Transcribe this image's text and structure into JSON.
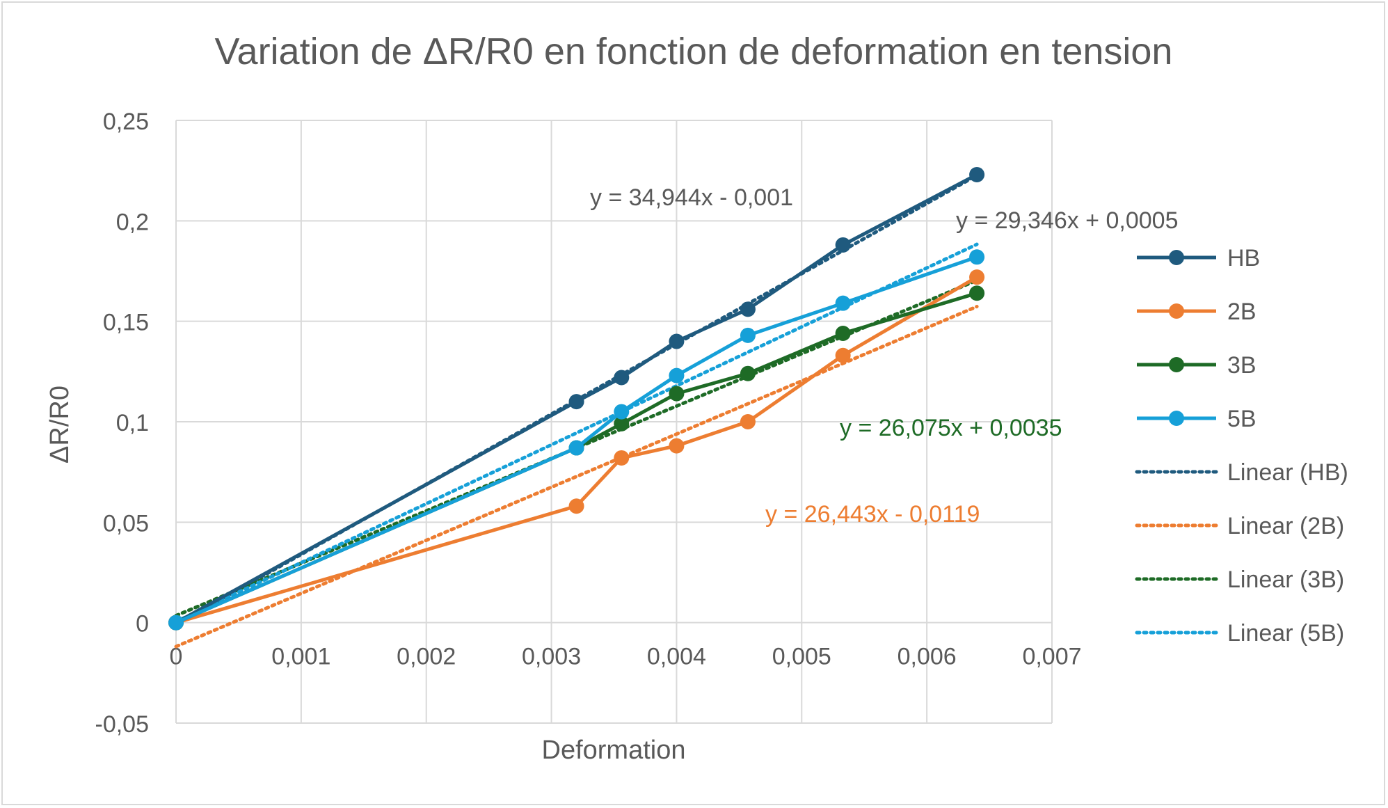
{
  "chart_data": {
    "type": "line",
    "title": "Variation de ΔR/R0 en fonction de deformation en tension",
    "xlabel": "Deformation",
    "ylabel": "ΔR/R0",
    "xlim": [
      0,
      0.007
    ],
    "ylim": [
      -0.05,
      0.25
    ],
    "x_ticks": [
      0,
      0.001,
      0.002,
      0.003,
      0.004,
      0.005,
      0.006,
      0.007
    ],
    "x_tick_labels": [
      "0",
      "0,001",
      "0,002",
      "0,003",
      "0,004",
      "0,005",
      "0,006",
      "0,007"
    ],
    "y_ticks": [
      -0.05,
      0,
      0.05,
      0.1,
      0.15,
      0.2,
      0.25
    ],
    "y_tick_labels": [
      "-0,05",
      "0",
      "0,05",
      "0,1",
      "0,15",
      "0,2",
      "0,25"
    ],
    "grid": true,
    "legend_position": "right",
    "series": [
      {
        "name": "HB",
        "color": "#1f5a7e",
        "x": [
          0,
          0.0032,
          0.00356,
          0.004,
          0.00457,
          0.00533,
          0.0064
        ],
        "y": [
          0,
          0.11,
          0.122,
          0.14,
          0.156,
          0.188,
          0.223
        ]
      },
      {
        "name": "2B",
        "color": "#ed7d31",
        "x": [
          0,
          0.0032,
          0.00356,
          0.004,
          0.00457,
          0.00533,
          0.0064
        ],
        "y": [
          0,
          0.058,
          0.082,
          0.088,
          0.1,
          0.133,
          0.172
        ]
      },
      {
        "name": "3B",
        "color": "#1e6b26",
        "x": [
          0,
          0.0032,
          0.00356,
          0.004,
          0.00457,
          0.00533,
          0.0064
        ],
        "y": [
          0,
          0.087,
          0.099,
          0.114,
          0.124,
          0.144,
          0.164
        ]
      },
      {
        "name": "5B",
        "color": "#16a0d8",
        "x": [
          0,
          0.0032,
          0.00356,
          0.004,
          0.00457,
          0.00533,
          0.0064
        ],
        "y": [
          0,
          0.087,
          0.105,
          0.123,
          0.143,
          0.159,
          0.182
        ]
      }
    ],
    "trendlines": [
      {
        "name": "Linear (HB)",
        "color": "#1f5a7e",
        "slope": 34.944,
        "intercept": -0.001,
        "x_range": [
          0,
          0.0064
        ],
        "equation": "y = 34,944x - 0,001"
      },
      {
        "name": "Linear (2B)",
        "color": "#ed7d31",
        "slope": 26.443,
        "intercept": -0.0119,
        "x_range": [
          0,
          0.0064
        ],
        "equation": "y = 26,443x - 0,0119"
      },
      {
        "name": "Linear (3B)",
        "color": "#1e6b26",
        "slope": 26.075,
        "intercept": 0.0035,
        "x_range": [
          0,
          0.0064
        ],
        "equation": "y = 26,075x + 0,0035"
      },
      {
        "name": "Linear (5B)",
        "color": "#16a0d8",
        "slope": 29.346,
        "intercept": 0.0005,
        "x_range": [
          0,
          0.0064
        ],
        "equation": "y = 29,346x + 0,0005"
      }
    ]
  }
}
